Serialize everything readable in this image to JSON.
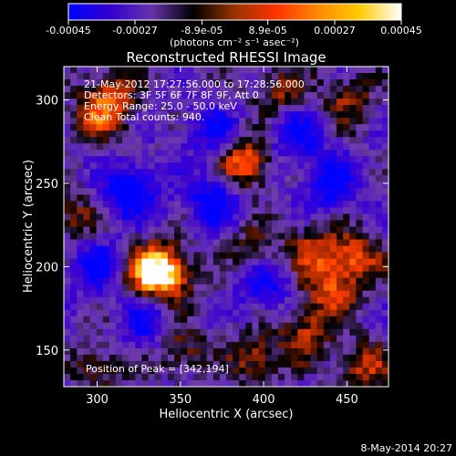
{
  "colorbar": {
    "ticks": [
      -0.00045,
      -0.00027,
      -8.9e-05,
      8.9e-05,
      0.00027,
      0.00045
    ],
    "tick_labels": [
      "-0.00045",
      "-0.00027",
      "-8.9e-05",
      "8.9e-05",
      "0.00027",
      "0.00045"
    ],
    "unit_label": "(photons cm⁻² s⁻¹ asec⁻²)",
    "range": [
      -0.00045,
      0.00045
    ],
    "colors": [
      "#0000ff",
      "#3300cc",
      "#6633aa",
      "#000000",
      "#993300",
      "#ff3300",
      "#ff8800",
      "#ffcc00",
      "#ffffff"
    ]
  },
  "chart_data": {
    "type": "heatmap",
    "title": "Reconstructed RHESSI Image",
    "xlabel": "Heliocentric X (arcsec)",
    "ylabel": "Heliocentric Y (arcsec)",
    "xlim": [
      280,
      475
    ],
    "ylim": [
      128,
      320
    ],
    "x_ticks": [
      300,
      350,
      400,
      450
    ],
    "y_ticks": [
      150,
      200,
      250,
      300
    ],
    "annotations": {
      "time_range": "21-May-2012 17:27:56.000 to 17:28:56.000",
      "detectors": "Detectors: 3F 5F 6F 7F 8F 9F, Att 0",
      "energy": "Energy Range: 25.0 - 50.0 keV",
      "method": "Clean     Total counts: 940.",
      "peak": "Position of Peak = [342,194]"
    },
    "peak": [
      342,
      194
    ],
    "sources": [
      {
        "x": 342,
        "y": 196,
        "amp": 1.0
      },
      {
        "x": 330,
        "y": 198,
        "amp": 0.75
      },
      {
        "x": 388,
        "y": 262,
        "amp": 0.9
      },
      {
        "x": 300,
        "y": 290,
        "amp": 0.6
      },
      {
        "x": 310,
        "y": 305,
        "amp": 0.55
      },
      {
        "x": 455,
        "y": 205,
        "amp": 0.7
      },
      {
        "x": 430,
        "y": 210,
        "amp": 0.6
      },
      {
        "x": 440,
        "y": 185,
        "amp": 0.65
      },
      {
        "x": 425,
        "y": 160,
        "amp": 0.6
      },
      {
        "x": 450,
        "y": 300,
        "amp": 0.5
      },
      {
        "x": 350,
        "y": 150,
        "amp": 0.5
      },
      {
        "x": 395,
        "y": 145,
        "amp": 0.55
      },
      {
        "x": 300,
        "y": 140,
        "amp": 0.45
      },
      {
        "x": 460,
        "y": 140,
        "amp": 0.6
      },
      {
        "x": 410,
        "y": 305,
        "amp": 0.5
      },
      {
        "x": 285,
        "y": 230,
        "amp": 0.45
      },
      {
        "x": 395,
        "y": 210,
        "amp": 0.45
      },
      {
        "x": 320,
        "y": 245,
        "amp": -0.8
      },
      {
        "x": 370,
        "y": 240,
        "amp": -0.7
      },
      {
        "x": 400,
        "y": 190,
        "amp": -0.6
      },
      {
        "x": 440,
        "y": 250,
        "amp": -0.7
      },
      {
        "x": 300,
        "y": 200,
        "amp": -0.6
      },
      {
        "x": 370,
        "y": 280,
        "amp": -0.5
      },
      {
        "x": 330,
        "y": 165,
        "amp": -0.5
      },
      {
        "x": 420,
        "y": 280,
        "amp": -0.6
      }
    ]
  },
  "footer": {
    "timestamp": "8-May-2014 20:27"
  }
}
